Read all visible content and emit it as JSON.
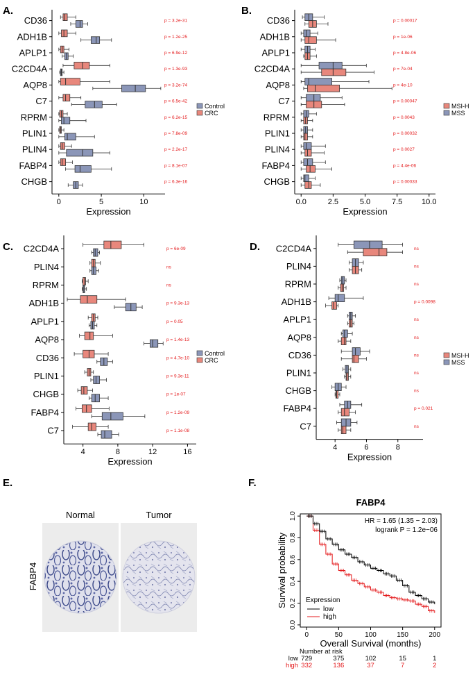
{
  "colors": {
    "control": "#8b96b8",
    "crc": "#e8877c",
    "msih": "#e8877c",
    "mss": "#8b96b8",
    "pval": "#e41a1c",
    "km_low": "#000000",
    "km_high": "#e41a1c"
  },
  "chart_data": [
    {
      "id": "A",
      "panel_label": "A.",
      "type": "boxplot",
      "orientation": "horizontal",
      "xlabel": "Expression",
      "xlim": [
        -0.8,
        12.5
      ],
      "xticks": [
        0,
        5,
        10
      ],
      "genes": [
        "CD36",
        "ADH1B",
        "APLP1",
        "C2CD4A",
        "AQP8",
        "C7",
        "RPRM",
        "PLIN1",
        "PLIN4",
        "FABP4",
        "CHGB"
      ],
      "pvalues": [
        "p = 3.2e-31",
        "p = 1.2e-25",
        "p = 6.9e-12",
        "p = 1.3e-93",
        "p = 3.2e-74",
        "p = 6.5e-42",
        "p = 6.2e-15",
        "p = 7.8e-09",
        "p = 2.2e-17",
        "p = 8.1e-07",
        "p = 6.3e-16"
      ],
      "legend": [
        "Control",
        "CRC"
      ],
      "series": [
        {
          "name": "CRC",
          "color_key": "crc",
          "offset": -1,
          "boxes": [
            [
              0.2,
              0.5,
              0.7,
              1.0,
              2.0
            ],
            [
              0.0,
              0.3,
              0.6,
              1.0,
              2.0
            ],
            [
              0.0,
              0.2,
              0.4,
              0.6,
              1.2
            ],
            [
              0.5,
              1.8,
              2.8,
              3.6,
              6.0
            ],
            [
              0.0,
              0.2,
              0.8,
              2.5,
              6.0
            ],
            [
              0.0,
              0.5,
              0.8,
              1.3,
              2.6
            ],
            [
              0.0,
              0.1,
              0.3,
              0.5,
              1.0
            ],
            [
              0.0,
              0.1,
              0.2,
              0.3,
              0.6
            ],
            [
              0.0,
              0.2,
              0.4,
              0.7,
              1.5
            ],
            [
              0.0,
              0.2,
              0.4,
              0.8,
              1.6
            ],
            [
              0,
              0,
              0,
              0,
              0
            ]
          ]
        },
        {
          "name": "Control",
          "color_key": "control",
          "offset": 1,
          "boxes": [
            [
              1.4,
              2.0,
              2.5,
              2.8,
              3.4
            ],
            [
              2.6,
              3.8,
              4.4,
              4.8,
              6.2
            ],
            [
              0.4,
              0.7,
              0.9,
              1.1,
              1.7
            ],
            [
              0.1,
              0.2,
              0.3,
              0.4,
              0.6
            ],
            [
              4.0,
              7.4,
              9.0,
              10.2,
              12.0
            ],
            [
              1.5,
              3.1,
              4.2,
              5.1,
              6.8
            ],
            [
              0.0,
              0.3,
              0.6,
              1.3,
              3.2
            ],
            [
              0.0,
              0.7,
              1.0,
              2.0,
              4.2
            ],
            [
              0.0,
              0.9,
              2.8,
              4.0,
              6.0
            ],
            [
              0.8,
              1.9,
              2.5,
              3.8,
              6.2
            ],
            [
              1.1,
              1.7,
              2.0,
              2.3,
              2.8
            ]
          ]
        }
      ]
    },
    {
      "id": "B",
      "panel_label": "B.",
      "type": "boxplot",
      "orientation": "horizontal",
      "xlabel": "Expression",
      "xlim": [
        -0.5,
        10.5
      ],
      "xticks": [
        0.0,
        2.5,
        5.0,
        7.5,
        10.0
      ],
      "genes": [
        "CD36",
        "ADH1B",
        "APLP1",
        "C2CD4A",
        "AQP8",
        "C7",
        "RPRM",
        "PLIN1",
        "PLIN4",
        "FABP4",
        "CHGB"
      ],
      "pvalues": [
        "p = 0.00017",
        "p = 1e-06",
        "p = 4.8e-06",
        "p = 7e-04",
        "p = 4e-10",
        "p = 0.00047",
        "p = 0.0043",
        "p = 0.00032",
        "p = 0.0027",
        "p = 4.4e-06",
        "p = 0.00033"
      ],
      "legend": [
        "MSI-H",
        "MSS"
      ],
      "series": [
        {
          "name": "MSS",
          "color_key": "mss",
          "offset": -1,
          "boxes": [
            [
              0.1,
              0.3,
              0.6,
              0.9,
              1.8
            ],
            [
              0.0,
              0.2,
              0.4,
              0.7,
              1.3
            ],
            [
              0.0,
              0.3,
              0.5,
              0.7,
              1.1
            ],
            [
              0.0,
              1.4,
              2.5,
              3.2,
              5.1
            ],
            [
              0.0,
              0.3,
              0.6,
              2.4,
              5.3
            ],
            [
              0.0,
              0.4,
              1.0,
              1.5,
              3.2
            ],
            [
              0.0,
              0.2,
              0.4,
              0.6,
              1.2
            ],
            [
              0.0,
              0.2,
              0.35,
              0.5,
              0.9
            ],
            [
              0.0,
              0.2,
              0.4,
              0.8,
              1.9
            ],
            [
              0.0,
              0.2,
              0.5,
              0.9,
              1.9
            ],
            [
              0.0,
              0.2,
              0.3,
              0.6,
              1.1
            ]
          ]
        },
        {
          "name": "MSI-H",
          "color_key": "msih",
          "offset": 1,
          "boxes": [
            [
              0.3,
              0.6,
              0.9,
              1.2,
              2.1
            ],
            [
              0.0,
              0.3,
              0.6,
              1.2,
              2.7
            ],
            [
              0.2,
              0.3,
              0.5,
              0.7,
              1.2
            ],
            [
              0.0,
              1.6,
              2.5,
              3.5,
              5.7
            ],
            [
              0.2,
              0.5,
              1.1,
              3.0,
              7.1
            ],
            [
              0.0,
              0.4,
              1.0,
              1.6,
              3.4
            ],
            [
              0.0,
              0.2,
              0.35,
              0.5,
              0.9
            ],
            [
              0.0,
              0.2,
              0.3,
              0.5,
              0.9
            ],
            [
              0.0,
              0.3,
              0.5,
              0.8,
              1.8
            ],
            [
              0.0,
              0.4,
              0.7,
              1.1,
              2.4
            ],
            [
              0.0,
              0.3,
              0.6,
              0.8,
              1.5
            ]
          ]
        }
      ]
    },
    {
      "id": "C",
      "panel_label": "C.",
      "type": "boxplot",
      "orientation": "horizontal",
      "xlabel": "Expression",
      "xlim": [
        1.8,
        17.0
      ],
      "xticks": [
        4,
        8,
        12,
        16
      ],
      "genes": [
        "C2CD4A",
        "PLIN4",
        "RPRM",
        "ADH1B",
        "APLP1",
        "AQP8",
        "CD36",
        "PLIN1",
        "CHGB",
        "FABP4",
        "C7"
      ],
      "pvalues": [
        "p = 6e-09",
        "ns",
        "ns",
        "p = 9.3e-13",
        "p = 0.05",
        "p = 1.4e-13",
        "p = 4.7e-10",
        "p = 9.3e-11",
        "p = 1e-07",
        "p = 1.2e-09",
        "p = 1.1e-08"
      ],
      "legend": [
        "Control",
        "CRC"
      ],
      "series": [
        {
          "name": "CRC",
          "color_key": "crc",
          "offset": -1,
          "boxes": [
            [
              4.0,
              6.4,
              7.2,
              8.4,
              11.0
            ],
            [
              4.8,
              5.0,
              5.2,
              5.4,
              6.0
            ],
            [
              3.9,
              4.0,
              4.2,
              4.3,
              4.6
            ],
            [
              2.2,
              3.7,
              4.5,
              5.6,
              8.9
            ],
            [
              4.6,
              5.0,
              5.2,
              5.4,
              5.7
            ],
            [
              3.6,
              4.2,
              4.8,
              5.2,
              7.4
            ],
            [
              3.0,
              4.0,
              4.7,
              5.3,
              6.9
            ],
            [
              4.2,
              4.5,
              4.7,
              4.9,
              5.2
            ],
            [
              3.4,
              3.8,
              4.1,
              4.5,
              5.1
            ],
            [
              3.2,
              3.9,
              4.4,
              5.0,
              7.0
            ],
            [
              2.8,
              4.6,
              5.0,
              5.5,
              6.9
            ]
          ]
        },
        {
          "name": "Control",
          "color_key": "control",
          "offset": 1,
          "boxes": [
            [
              5.0,
              5.2,
              5.4,
              5.7,
              5.9
            ],
            [
              4.8,
              5.0,
              5.2,
              5.5,
              5.8
            ],
            [
              3.9,
              4.0,
              4.1,
              4.2,
              4.4
            ],
            [
              7.6,
              8.9,
              9.5,
              10.1,
              10.8
            ],
            [
              4.7,
              4.9,
              5.1,
              5.3,
              5.6
            ],
            [
              11.0,
              11.7,
              12.0,
              12.6,
              13.2
            ],
            [
              5.6,
              6.0,
              6.4,
              6.8,
              7.4
            ],
            [
              4.9,
              5.2,
              5.5,
              5.9,
              6.7
            ],
            [
              4.7,
              5.0,
              5.4,
              5.9,
              6.9
            ],
            [
              5.0,
              6.2,
              7.2,
              8.6,
              11.1
            ],
            [
              5.7,
              6.1,
              6.5,
              7.3,
              8.1
            ]
          ]
        }
      ]
    },
    {
      "id": "D",
      "panel_label": "D.",
      "type": "boxplot",
      "orientation": "horizontal",
      "xlabel": "Expression",
      "xlim": [
        2.8,
        9.6
      ],
      "xticks": [
        4,
        6,
        8
      ],
      "genes": [
        "C2CD4A",
        "PLIN4",
        "RPRM",
        "ADH1B",
        "APLP1",
        "AQP8",
        "CD36",
        "PLIN1",
        "CHGB",
        "FABP4",
        "C7"
      ],
      "pvalues": [
        "ns",
        "ns",
        "ns",
        "p = 0.0098",
        "ns",
        "ns",
        "ns",
        "ns",
        "ns",
        "p = 0.021",
        "ns"
      ],
      "legend": [
        "MSI-H",
        "MSS"
      ],
      "series": [
        {
          "name": "MSS",
          "color_key": "mss",
          "offset": -1,
          "boxes": [
            [
              4.2,
              5.2,
              6.2,
              7.0,
              8.3
            ],
            [
              4.9,
              5.1,
              5.3,
              5.5,
              5.8
            ],
            [
              4.3,
              4.4,
              4.5,
              4.6,
              4.7
            ],
            [
              3.6,
              4.0,
              4.2,
              4.6,
              5.8
            ],
            [
              4.8,
              4.9,
              5.0,
              5.1,
              5.3
            ],
            [
              4.4,
              4.5,
              4.6,
              4.8,
              5.1
            ],
            [
              4.4,
              5.1,
              5.3,
              5.6,
              6.2
            ],
            [
              4.5,
              4.65,
              4.75,
              4.85,
              5.0
            ],
            [
              3.8,
              4.0,
              4.2,
              4.4,
              4.7
            ],
            [
              4.3,
              4.6,
              4.8,
              5.0,
              5.7
            ],
            [
              4.1,
              4.4,
              4.7,
              5.0,
              5.4
            ]
          ]
        },
        {
          "name": "MSI-H",
          "color_key": "msih",
          "offset": 1,
          "boxes": [
            [
              4.8,
              5.8,
              6.8,
              7.3,
              8.3
            ],
            [
              4.9,
              5.1,
              5.3,
              5.5,
              5.7
            ],
            [
              4.2,
              4.35,
              4.45,
              4.55,
              4.7
            ],
            [
              3.4,
              3.8,
              3.9,
              4.1,
              4.2
            ],
            [
              4.8,
              4.9,
              5.0,
              5.1,
              5.2
            ],
            [
              4.2,
              4.4,
              4.6,
              4.7,
              5.0
            ],
            [
              4.4,
              5.1,
              5.2,
              5.5,
              6.0
            ],
            [
              4.6,
              4.7,
              4.75,
              4.85,
              5.0
            ],
            [
              4.0,
              4.05,
              4.1,
              4.2,
              4.3
            ],
            [
              4.2,
              4.4,
              4.6,
              4.9,
              5.3
            ],
            [
              4.2,
              4.4,
              4.5,
              4.7,
              5.0
            ]
          ]
        }
      ]
    },
    {
      "id": "F",
      "panel_label": "F.",
      "type": "line",
      "title": "FABP4",
      "xlabel": "Overall Survival (months)",
      "ylabel": "Survival probability",
      "xlim": [
        -10,
        210
      ],
      "ylim": [
        -0.02,
        1.02
      ],
      "xticks": [
        0,
        50,
        100,
        150,
        200
      ],
      "yticks": [
        0.0,
        0.2,
        0.4,
        0.6,
        0.8,
        1.0
      ],
      "hr_text": "HR = 1.65 (1.35 − 2.03)",
      "logrank_text": "logrank P = 1.2e−06",
      "legend_title": "Expression",
      "series": [
        {
          "name": "low",
          "color_key": "km_low",
          "x": [
            0,
            10,
            20,
            30,
            40,
            50,
            60,
            70,
            80,
            90,
            100,
            110,
            120,
            130,
            140,
            150,
            160,
            170,
            180,
            190,
            200
          ],
          "y": [
            1.0,
            0.93,
            0.86,
            0.79,
            0.74,
            0.69,
            0.65,
            0.62,
            0.58,
            0.55,
            0.52,
            0.5,
            0.47,
            0.45,
            0.41,
            0.36,
            0.3,
            0.27,
            0.24,
            0.21,
            0.19
          ]
        },
        {
          "name": "high",
          "color_key": "km_high",
          "x": [
            0,
            10,
            20,
            30,
            40,
            50,
            60,
            70,
            80,
            90,
            100,
            110,
            120,
            130,
            140,
            150,
            160,
            170,
            180,
            190,
            200
          ],
          "y": [
            1.0,
            0.87,
            0.74,
            0.65,
            0.56,
            0.5,
            0.46,
            0.41,
            0.38,
            0.35,
            0.32,
            0.3,
            0.27,
            0.25,
            0.24,
            0.23,
            0.22,
            0.19,
            0.17,
            0.13,
            0.11
          ]
        }
      ],
      "risk_table": {
        "header": "Number at risk",
        "rows": [
          {
            "name": "low",
            "color_key": "km_low",
            "counts": [
              "729",
              "375",
              "102",
              "15",
              "1"
            ]
          },
          {
            "name": "high",
            "color_key": "km_high",
            "counts": [
              "332",
              "136",
              "37",
              "7",
              "2"
            ]
          }
        ]
      }
    }
  ],
  "panel_e": {
    "panel_label": "E.",
    "row_label": "FABP4",
    "normal_label": "Normal",
    "tumor_label": "Tumor"
  }
}
